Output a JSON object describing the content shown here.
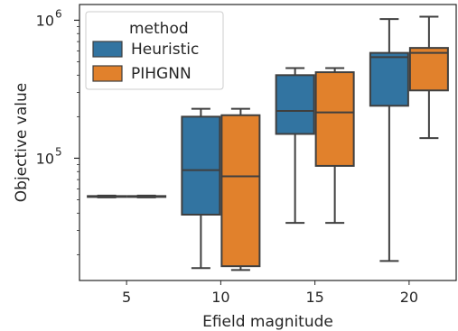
{
  "chart_data": {
    "type": "box",
    "xlabel": "Efield magnitude",
    "ylabel": "Objective value",
    "yscale": "log",
    "ylim": [
      13000,
      1300000
    ],
    "categories": [
      "5",
      "10",
      "15",
      "20"
    ],
    "y_tick_labels": [
      {
        "value": 100000,
        "base": "10",
        "exp": "5"
      },
      {
        "value": 1000000,
        "base": "10",
        "exp": "6"
      }
    ],
    "legend": {
      "title": "method",
      "placement": "top-left"
    },
    "series": [
      {
        "name": "Heuristic",
        "color": "#3274a1",
        "boxes": [
          {
            "whisker_low": 52000,
            "q1": 52400,
            "median": 52800,
            "q3": 53200,
            "whisker_high": 53600
          },
          {
            "whisker_low": 16000,
            "q1": 39000,
            "median": 82000,
            "q3": 200000,
            "whisker_high": 228000
          },
          {
            "whisker_low": 34000,
            "q1": 150000,
            "median": 220000,
            "q3": 400000,
            "whisker_high": 450000
          },
          {
            "whisker_low": 18000,
            "q1": 240000,
            "median": 540000,
            "q3": 580000,
            "whisker_high": 1020000
          }
        ]
      },
      {
        "name": "PIHGNN",
        "color": "#e1812c",
        "boxes": [
          {
            "whisker_low": 52000,
            "q1": 52400,
            "median": 52800,
            "q3": 53200,
            "whisker_high": 53600
          },
          {
            "whisker_low": 15500,
            "q1": 16500,
            "median": 74000,
            "q3": 205000,
            "whisker_high": 228000
          },
          {
            "whisker_low": 34000,
            "q1": 88000,
            "median": 215000,
            "q3": 420000,
            "whisker_high": 450000
          },
          {
            "whisker_low": 140000,
            "q1": 310000,
            "median": 580000,
            "q3": 630000,
            "whisker_high": 1060000
          }
        ]
      }
    ]
  }
}
